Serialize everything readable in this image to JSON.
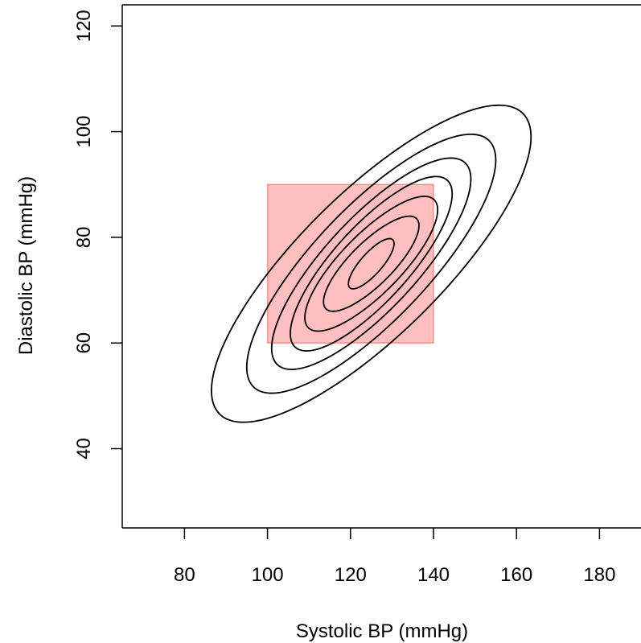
{
  "chart_data": {
    "type": "contour",
    "title": "",
    "xlabel": "Systolic BP (mmHg)",
    "ylabel": "Diastolic BP (mmHg)",
    "xlim": [
      65,
      190
    ],
    "ylim": [
      25,
      124
    ],
    "xticks": [
      "80",
      "100",
      "120",
      "140",
      "160",
      "180"
    ],
    "yticks": [
      "40",
      "60",
      "80",
      "100",
      "120"
    ],
    "xtick_values": [
      80,
      100,
      120,
      140,
      160,
      180
    ],
    "ytick_values": [
      40,
      60,
      80,
      100,
      120
    ],
    "box": false,
    "grid": false,
    "highlight_region": {
      "x": [
        100,
        140
      ],
      "y": [
        60,
        90
      ],
      "color": "#ff0000",
      "opacity": 0.25
    },
    "contour_center": {
      "x": 125,
      "y": 75
    },
    "contour_levels_extent": [
      {
        "x": [
          120,
          131
        ],
        "y": [
          70.5,
          80
        ]
      },
      {
        "x": [
          114,
          137
        ],
        "y": [
          66,
          84
        ]
      },
      {
        "x": [
          109,
          141
        ],
        "y": [
          62.5,
          88
        ]
      },
      {
        "x": [
          106,
          145
        ],
        "y": [
          58.5,
          91.5
        ]
      },
      {
        "x": [
          102,
          150
        ],
        "y": [
          55,
          95
        ]
      },
      {
        "x": [
          96,
          156
        ],
        "y": [
          50.5,
          99.5
        ]
      },
      {
        "x": [
          88,
          165
        ],
        "y": [
          45,
          105
        ]
      }
    ],
    "contour_color": "#000000"
  }
}
